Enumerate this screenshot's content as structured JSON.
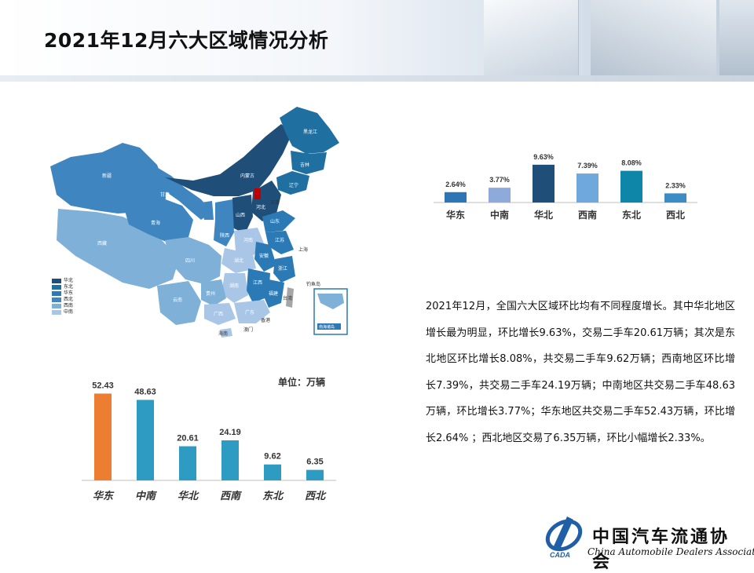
{
  "page": {
    "title": "2021年12月六大区域情况分析",
    "unit_label": "单位：万辆",
    "description": "2021年12月，全国六大区域环比均有不同程度增长。其中华北地区增长最为明显，环比增长9.63%，交易二手车20.61万辆；其次是东北地区环比增长8.08%，共交易二手车9.62万辆；西南地区环比增长7.39%，共交易二手车24.19万辆；中南地区共交易二手车48.63万辆，环比增长3.77%；华东地区共交易二手车52.43万辆，环比增长2.64% ；西北地区交易了6.35万辆，环比小幅增长2.33%。"
  },
  "map": {
    "legend": [
      {
        "label": "华北",
        "color": "#1f4e79"
      },
      {
        "label": "东北",
        "color": "#1f6fa0"
      },
      {
        "label": "华东",
        "color": "#2b79b5"
      },
      {
        "label": "西北",
        "color": "#3f86c0"
      },
      {
        "label": "西南",
        "color": "#7fb0d8"
      },
      {
        "label": "中南",
        "color": "#a9c6e6"
      }
    ],
    "labels": {
      "xinjiang": "新疆",
      "xizang": "西藏",
      "qinghai": "青海",
      "gansu": "甘肃",
      "neimenggu": "内蒙古",
      "heilongjiang": "黑龙江",
      "jilin": "吉林",
      "liaoning": "辽宁",
      "hebei": "河北",
      "shanxi": "山西",
      "tianjin": "天津",
      "shandong": "山东",
      "shaanxi": "陕西",
      "henan": "河南",
      "sichuan": "四川",
      "hubei": "湖北",
      "anhui": "安徽",
      "jiangsu": "江苏",
      "shanghai": "上海",
      "zhejiang": "浙江",
      "hunan": "湖南",
      "jiangxi": "江西",
      "fujian": "福建",
      "guizhou": "贵州",
      "yunnan": "云南",
      "guangxi": "广西",
      "guangdong": "广东",
      "taiwan": "台湾",
      "hainan": "海南",
      "aomen": "澳门",
      "xianggang": "香港",
      "diaoyudao": "钓鱼岛",
      "nanhai": "南海诸岛"
    }
  },
  "chart_data": [
    {
      "type": "bar",
      "categories": [
        "华东",
        "中南",
        "华北",
        "西南",
        "东北",
        "西北"
      ],
      "values": [
        2.64,
        3.77,
        9.63,
        7.39,
        8.08,
        2.33
      ],
      "value_labels": [
        "2.64%",
        "3.77%",
        "9.63%",
        "7.39%",
        "8.08%",
        "2.33%"
      ],
      "colors": [
        "#2e75b6",
        "#8eaadb",
        "#1f4e79",
        "#6fa8dc",
        "#0e86a8",
        "#3c8dc5"
      ],
      "ylim": [
        0,
        10
      ],
      "title": "",
      "xlabel": "",
      "ylabel": ""
    },
    {
      "type": "bar",
      "categories": [
        "华东",
        "中南",
        "华北",
        "西南",
        "东北",
        "西北"
      ],
      "values": [
        52.43,
        48.63,
        20.61,
        24.19,
        9.62,
        6.35
      ],
      "colors": [
        "#ed7d31",
        "#2e9cc2",
        "#2e9cc2",
        "#2e9cc2",
        "#2e9cc2",
        "#2e9cc2"
      ],
      "ylim": [
        0,
        55
      ],
      "title": "",
      "xlabel": "",
      "ylabel": ""
    }
  ],
  "logo": {
    "cn": "中国汽车流通协会",
    "en": "China Automobile Dealers Association",
    "mark": "CADA"
  }
}
